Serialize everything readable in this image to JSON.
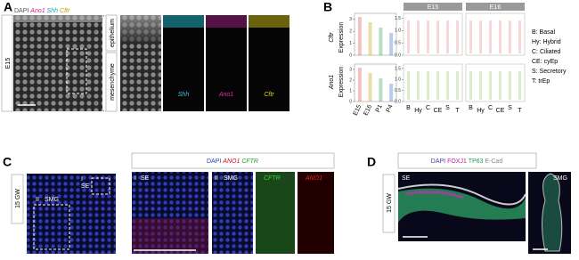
{
  "panel_a": {
    "label": "A",
    "channels": [
      "DAPI",
      "Ano1",
      "Shh",
      "Cftr"
    ],
    "stage": "E15",
    "regions": [
      "epithelium",
      "mesenchyme"
    ],
    "insets": [
      "Shh",
      "Ano1",
      "Cftr"
    ]
  },
  "panel_b": {
    "label": "B",
    "genes": [
      "Cftr",
      "Ano1"
    ],
    "y_label": "Expression",
    "timecourse": {
      "categories": [
        "E15",
        "E16",
        "P1",
        "P4"
      ],
      "ylim": [
        0,
        3.5
      ],
      "yticks": [
        0,
        1,
        2,
        3
      ]
    },
    "celltypes": {
      "stages": [
        "E15",
        "E16"
      ],
      "categories": [
        "B",
        "Hy",
        "C",
        "CE",
        "S",
        "T"
      ],
      "ylim": [
        0,
        1.7
      ],
      "yticks": [
        {
          "value": 0,
          "label": "0.0"
        },
        {
          "value": 0.5,
          "label": "0.5"
        },
        {
          "value": 1,
          "label": "1.0"
        },
        {
          "value": 1.5,
          "label": "1.5"
        }
      ]
    },
    "legend": [
      "B: Basal",
      "Hy: Hybrid",
      "C: Ciliated",
      "CE: cyEp",
      "S: Secretory",
      "T: trEp"
    ]
  },
  "panel_c": {
    "label": "C",
    "stage": "15 GW",
    "channels": [
      "DAPI",
      "ANO1",
      "CFTR"
    ],
    "regions": [
      "SE",
      "SMG"
    ],
    "markers": [
      "I",
      "II"
    ],
    "insets": [
      "CFTR",
      "ANO1"
    ]
  },
  "panel_d": {
    "label": "D",
    "stage": "15 GW",
    "channels": [
      "DAPI",
      "FOXJ1",
      "TP63",
      "E-Cad"
    ],
    "regions": [
      "SE",
      "SMG"
    ]
  }
}
